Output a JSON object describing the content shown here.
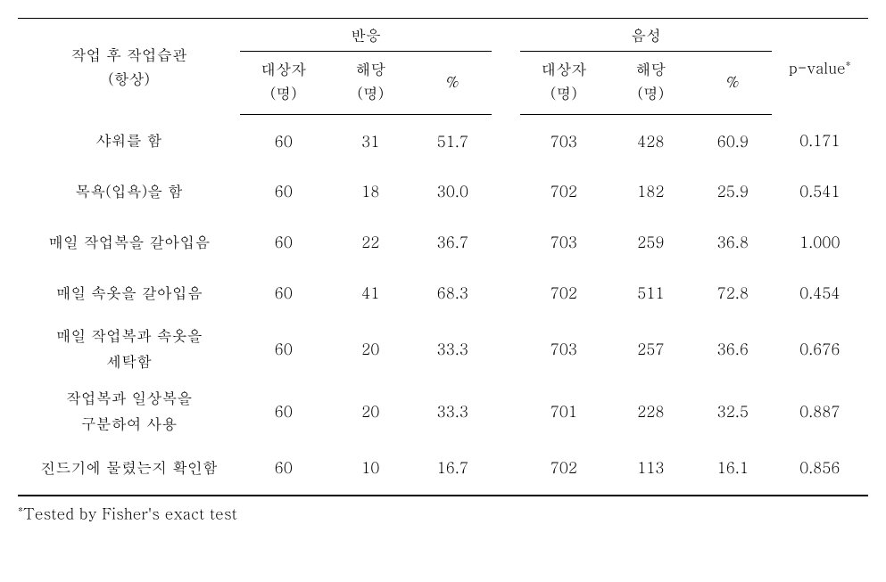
{
  "table": {
    "header": {
      "row_label_line1": "작업 후 작업습관",
      "row_label_line2": "(항상)",
      "group1": "반응",
      "group2": "음성",
      "sub_n_line1": "대상자",
      "sub_n_line2": "(명)",
      "sub_cnt_line1": "해당",
      "sub_cnt_line2": "(명)",
      "sub_pct": "%",
      "pvalue": "p-value",
      "pvalue_star": "*"
    },
    "rows": [
      {
        "label": "샤워를 함",
        "g1_n": "60",
        "g1_cnt": "31",
        "g1_pct": "51.7",
        "g2_n": "703",
        "g2_cnt": "428",
        "g2_pct": "60.9",
        "p": "0.171"
      },
      {
        "label": "목욕(입욕)을 함",
        "g1_n": "60",
        "g1_cnt": "18",
        "g1_pct": "30.0",
        "g2_n": "702",
        "g2_cnt": "182",
        "g2_pct": "25.9",
        "p": "0.541"
      },
      {
        "label": "매일 작업복을 갈아입음",
        "g1_n": "60",
        "g1_cnt": "22",
        "g1_pct": "36.7",
        "g2_n": "703",
        "g2_cnt": "259",
        "g2_pct": "36.8",
        "p": "1.000"
      },
      {
        "label": "매일 속옷을 갈아입음",
        "g1_n": "60",
        "g1_cnt": "41",
        "g1_pct": "68.3",
        "g2_n": "702",
        "g2_cnt": "511",
        "g2_pct": "72.8",
        "p": "0.454"
      },
      {
        "label": "매일 작업복과 속옷을\n세탁함",
        "g1_n": "60",
        "g1_cnt": "20",
        "g1_pct": "33.3",
        "g2_n": "703",
        "g2_cnt": "257",
        "g2_pct": "36.6",
        "p": "0.676"
      },
      {
        "label": "작업복과 일상복을\n구분하여 사용",
        "g1_n": "60",
        "g1_cnt": "20",
        "g1_pct": "33.3",
        "g2_n": "701",
        "g2_cnt": "228",
        "g2_pct": "32.5",
        "p": "0.887"
      },
      {
        "label": "진드기에 물렸는지 확인함",
        "g1_n": "60",
        "g1_cnt": "10",
        "g1_pct": "16.7",
        "g2_n": "702",
        "g2_cnt": "113",
        "g2_pct": "16.1",
        "p": "0.856"
      }
    ],
    "footnote_star": "*",
    "footnote": "Tested by Fisher's exact test"
  },
  "style": {
    "text_color": "#000000",
    "background_color": "#ffffff",
    "border_color": "#000000",
    "font_size_body": 17,
    "font_size_sup": 12
  }
}
